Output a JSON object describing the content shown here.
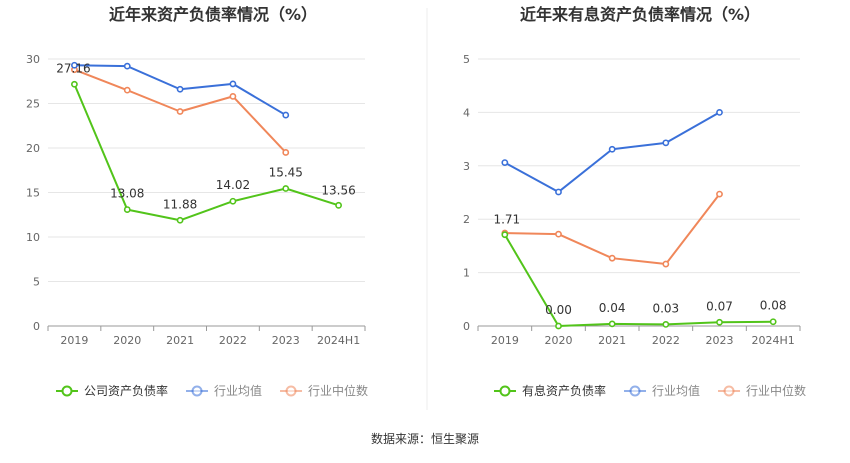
{
  "source_label": "数据来源：恒生聚源",
  "colors": {
    "company": "#52c41a",
    "industry_avg": "#3a70d9",
    "industry_median": "#f0875a",
    "grid": "#e6e6e6",
    "axis": "#999999",
    "label": "#333333",
    "divider": "#eeeeee"
  },
  "chart_data": [
    {
      "type": "line",
      "title": "近年来资产负债率情况（%）",
      "categories": [
        "2019",
        "2020",
        "2021",
        "2022",
        "2023",
        "2024H1"
      ],
      "ylim": [
        0,
        30
      ],
      "yticks": [
        0,
        5,
        10,
        15,
        20,
        25,
        30
      ],
      "grid": true,
      "legend_position": "bottom",
      "series": [
        {
          "name": "公司资产负债率",
          "color_key": "company",
          "values": [
            27.16,
            13.08,
            11.88,
            14.02,
            15.45,
            13.56
          ],
          "labels": [
            "27.16",
            "13.08",
            "11.88",
            "14.02",
            "15.45",
            "13.56"
          ]
        },
        {
          "name": "行业均值",
          "color_key": "industry_avg",
          "values": [
            29.3,
            29.2,
            26.6,
            27.2,
            23.7,
            null
          ]
        },
        {
          "name": "行业中位数",
          "color_key": "industry_median",
          "values": [
            28.8,
            26.5,
            24.1,
            25.8,
            19.5,
            null
          ]
        }
      ]
    },
    {
      "type": "line",
      "title": "近年来有息资产负债率情况（%）",
      "categories": [
        "2019",
        "2020",
        "2021",
        "2022",
        "2023",
        "2024H1"
      ],
      "ylim": [
        0,
        5
      ],
      "yticks": [
        0,
        1,
        2,
        3,
        4,
        5
      ],
      "grid": true,
      "legend_position": "bottom",
      "series": [
        {
          "name": "有息资产负债率",
          "color_key": "company",
          "values": [
            1.71,
            0.0,
            0.04,
            0.03,
            0.07,
            0.08
          ],
          "labels": [
            "1.71",
            "0.00",
            "0.04",
            "0.03",
            "0.07",
            "0.08"
          ]
        },
        {
          "name": "行业均值",
          "color_key": "industry_avg",
          "values": [
            3.06,
            2.51,
            3.31,
            3.43,
            4.0,
            null
          ]
        },
        {
          "name": "行业中位数",
          "color_key": "industry_median",
          "values": [
            1.74,
            1.72,
            1.27,
            1.16,
            2.47,
            null
          ]
        }
      ]
    }
  ]
}
